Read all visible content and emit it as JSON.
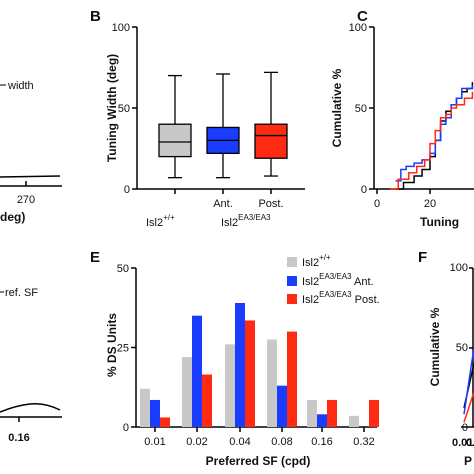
{
  "panels": {
    "A": {
      "letter": "",
      "legend_text": "width",
      "xtick": "270",
      "xlabel": "deg)"
    },
    "B": {
      "letter": "B",
      "ylabel": "Tuning Width (deg)",
      "yticks": [
        "0",
        "50",
        "100"
      ],
      "xticks": [
        "Ant.",
        "Post."
      ],
      "group_wt": "Isl2",
      "group_wt_sup": "+/+",
      "group_mut": "Isl2",
      "group_mut_sup": "EA3/EA3"
    },
    "C": {
      "letter": "C",
      "ylabel": "Cumulative %",
      "yticks": [
        "0",
        "50",
        "100"
      ],
      "xticks": [
        "0",
        "20"
      ],
      "xlabel": "Tuning"
    },
    "D": {
      "legend_text": "ref. SF",
      "xtick": "0.16"
    },
    "E": {
      "letter": "E",
      "ylabel": "% DS Units",
      "yticks": [
        "0",
        "25",
        "50"
      ],
      "xlabel": "Preferred SF (cpd)",
      "legend": [
        {
          "base": "Isl2",
          "sup": "+/+",
          "suffix": ""
        },
        {
          "base": "Isl2",
          "sup": "EA3/EA3",
          "suffix": " Ant."
        },
        {
          "base": "Isl2",
          "sup": "EA3/EA3",
          "suffix": " Post."
        }
      ]
    },
    "F": {
      "letter": "F",
      "ylabel": "Cumulative %",
      "yticks": [
        "0",
        "50",
        "100"
      ],
      "xticks": [
        "0.01",
        "0.0"
      ],
      "xlabel": "P"
    }
  },
  "colors": {
    "wt": "#c8c8c8",
    "ant": "#1a3cff",
    "post": "#ff2a12",
    "black": "#000000"
  },
  "chart_data": [
    {
      "panel": "B",
      "type": "box",
      "ylabel": "Tuning Width (deg)",
      "ylim": [
        0,
        100
      ],
      "boxes": [
        {
          "group": "wt",
          "whisker_low": 7,
          "q1": 20,
          "median": 29,
          "q3": 40,
          "whisker_high": 70
        },
        {
          "group": "ant",
          "whisker_low": 7,
          "q1": 22,
          "median": 30,
          "q3": 38,
          "whisker_high": 71
        },
        {
          "group": "post",
          "whisker_low": 8,
          "q1": 19,
          "median": 33,
          "q3": 40,
          "whisker_high": 72
        }
      ]
    },
    {
      "panel": "E",
      "type": "bar",
      "ylabel": "% DS Units",
      "xlabel": "Preferred SF (cpd)",
      "ylim": [
        0,
        50
      ],
      "categories": [
        "0.01",
        "0.02",
        "0.04",
        "0.08",
        "0.16",
        "0.32"
      ],
      "series": [
        {
          "group": "wt",
          "values": [
            12,
            22,
            26,
            27.5,
            8.5,
            3.5
          ]
        },
        {
          "group": "ant",
          "values": [
            8.5,
            35,
            39,
            13,
            4,
            0
          ]
        },
        {
          "group": "post",
          "values": [
            3,
            16.5,
            33.5,
            30,
            8.5,
            8.5
          ]
        }
      ]
    },
    {
      "panel": "C",
      "type": "line",
      "ylabel": "Cumulative %",
      "ylim": [
        0,
        100
      ],
      "series": [
        {
          "color": "black",
          "x": [
            7,
            10,
            14,
            17,
            20,
            22,
            24,
            26,
            28,
            30,
            32,
            34,
            36
          ],
          "y": [
            0,
            4,
            8,
            12,
            20,
            30,
            42,
            48,
            52,
            56,
            60,
            62,
            66
          ]
        },
        {
          "color": "ant",
          "x": [
            7,
            9,
            11,
            14,
            17,
            20,
            22,
            24,
            26,
            28,
            30,
            32,
            36
          ],
          "y": [
            5,
            12,
            14,
            16,
            18,
            22,
            30,
            40,
            44,
            52,
            56,
            62,
            64
          ]
        },
        {
          "color": "post",
          "x": [
            5,
            8,
            12,
            15,
            18,
            20,
            22,
            24,
            26,
            28,
            30,
            33,
            36
          ],
          "y": [
            0,
            6,
            10,
            14,
            18,
            28,
            36,
            44,
            46,
            50,
            52,
            56,
            60
          ]
        }
      ]
    },
    {
      "panel": "F",
      "type": "line",
      "ylabel": "Cumulative %",
      "ylim": [
        0,
        100
      ],
      "series": [
        {
          "color": "black",
          "x": [
            0,
            1
          ],
          "y": [
            12,
            40
          ]
        },
        {
          "color": "ant",
          "x": [
            0,
            1
          ],
          "y": [
            8,
            50
          ]
        },
        {
          "color": "post",
          "x": [
            0,
            1
          ],
          "y": [
            3,
            22
          ]
        }
      ]
    }
  ]
}
